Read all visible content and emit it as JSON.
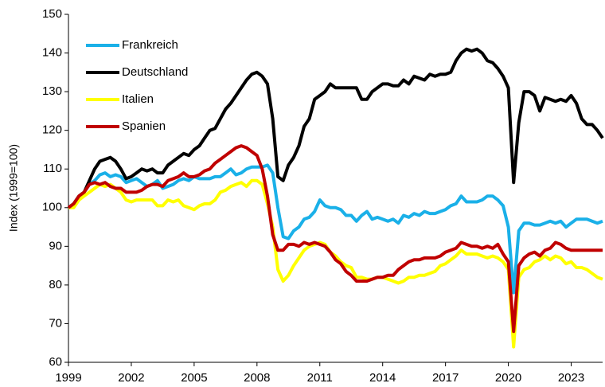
{
  "chart_data": {
    "type": "line",
    "y_label": "Index (1999=100)",
    "x": [
      1999,
      1999.25,
      1999.5,
      1999.75,
      2000,
      2000.25,
      2000.5,
      2000.75,
      2001,
      2001.25,
      2001.5,
      2001.75,
      2002,
      2002.25,
      2002.5,
      2002.75,
      2003,
      2003.25,
      2003.5,
      2003.75,
      2004,
      2004.25,
      2004.5,
      2004.75,
      2005,
      2005.25,
      2005.5,
      2005.75,
      2006,
      2006.25,
      2006.5,
      2006.75,
      2007,
      2007.25,
      2007.5,
      2007.75,
      2008,
      2008.25,
      2008.5,
      2008.75,
      2009,
      2009.25,
      2009.5,
      2009.75,
      2010,
      2010.25,
      2010.5,
      2010.75,
      2011,
      2011.25,
      2011.5,
      2011.75,
      2012,
      2012.25,
      2012.5,
      2012.75,
      2013,
      2013.25,
      2013.5,
      2013.75,
      2014,
      2014.25,
      2014.5,
      2014.75,
      2015,
      2015.25,
      2015.5,
      2015.75,
      2016,
      2016.25,
      2016.5,
      2016.75,
      2017,
      2017.25,
      2017.5,
      2017.75,
      2018,
      2018.25,
      2018.5,
      2018.75,
      2019,
      2019.25,
      2019.5,
      2019.75,
      2020,
      2020.25,
      2020.5,
      2020.75,
      2021,
      2021.25,
      2021.5,
      2021.75,
      2022,
      2022.25,
      2022.5,
      2022.75,
      2023,
      2023.25,
      2023.5,
      2023.75,
      2024,
      2024.25,
      2024.5
    ],
    "series": [
      {
        "name": "Frankreich",
        "color": "#1ab0e8",
        "values": [
          100,
          101,
          103,
          104,
          106,
          107,
          108.5,
          109,
          108,
          108.5,
          108,
          106.5,
          107,
          107.5,
          106.5,
          105.5,
          106,
          107,
          105,
          105.5,
          106,
          107,
          107.5,
          107,
          108,
          107.5,
          107.5,
          107.5,
          108,
          108,
          109,
          110,
          108.5,
          109,
          110,
          110.5,
          110.5,
          110.5,
          111,
          109,
          100,
          92.5,
          92,
          94,
          95,
          97,
          97.5,
          99,
          102,
          100.5,
          100,
          100,
          99.5,
          98,
          98,
          96.5,
          98,
          99,
          97,
          97.5,
          97,
          96.5,
          97,
          96,
          98,
          97.5,
          98.5,
          98,
          99,
          98.5,
          98.5,
          99,
          99.5,
          100.5,
          101,
          103,
          101.5,
          101.5,
          101.5,
          102,
          103,
          103,
          102,
          100.5,
          95,
          78,
          94,
          96,
          96,
          95.5,
          95.5,
          96,
          96.5,
          96,
          96.5,
          95,
          96,
          97,
          97,
          97,
          96.5,
          96,
          96.5
        ]
      },
      {
        "name": "Deutschland",
        "color": "#000000",
        "values": [
          100,
          101,
          103,
          104,
          107,
          110,
          112,
          112.5,
          113,
          112,
          110,
          107.5,
          108,
          109,
          110,
          109.5,
          110,
          109,
          109,
          111,
          112,
          113,
          114,
          113.5,
          115,
          116,
          118,
          120,
          120.5,
          123,
          125.5,
          127,
          129,
          131,
          133,
          134.5,
          135,
          134,
          132,
          123,
          108,
          107,
          111,
          113,
          116,
          121,
          123,
          128,
          129,
          130,
          132,
          131,
          131,
          131,
          131,
          131,
          128,
          128,
          130,
          131,
          132,
          132,
          131.5,
          131.5,
          133,
          132,
          134,
          133.5,
          133,
          134.5,
          134,
          134.5,
          134.5,
          135,
          138,
          140,
          141,
          140.5,
          141,
          140,
          138,
          137.5,
          136,
          134,
          131,
          106.5,
          122,
          130,
          130,
          129,
          125,
          128.5,
          128,
          127.5,
          128,
          127.5,
          129,
          127,
          123,
          121.5,
          121.5,
          120,
          118
        ]
      },
      {
        "name": "Italien",
        "color": "#ffff00",
        "values": [
          100,
          100,
          102,
          103,
          104,
          105,
          106,
          105.5,
          106,
          105,
          104,
          102,
          101.5,
          102,
          102,
          102,
          102,
          100.5,
          100.5,
          102,
          101.5,
          102,
          100.5,
          100,
          99.5,
          100.5,
          101,
          101,
          102,
          104,
          104.5,
          105.5,
          106,
          106.5,
          105.5,
          107,
          107,
          106,
          101,
          95,
          84,
          81,
          82.5,
          85,
          87,
          89,
          90,
          90.5,
          91,
          90.5,
          88.5,
          87.5,
          86,
          85,
          84.5,
          82,
          82,
          81.5,
          81.5,
          82,
          82,
          81.5,
          81,
          80.5,
          81,
          82,
          82,
          82.5,
          82.5,
          83,
          83.5,
          85,
          85.5,
          86.5,
          87.5,
          89,
          88,
          88,
          88,
          87.5,
          87,
          87.5,
          87,
          86,
          84,
          64,
          82,
          84,
          84.5,
          86,
          86.5,
          87.5,
          86.5,
          87.5,
          87,
          85.5,
          86,
          84.5,
          84.5,
          84,
          83,
          82,
          81.5
        ]
      },
      {
        "name": "Spanien",
        "color": "#c00000",
        "values": [
          100,
          101,
          103,
          104,
          106,
          106.5,
          106,
          106.5,
          105.5,
          105,
          105,
          104,
          104,
          104,
          104.5,
          105.5,
          106,
          106,
          105.5,
          107,
          107.5,
          108,
          109,
          108,
          108,
          108.5,
          109.5,
          110,
          111.5,
          112.5,
          113.5,
          114.5,
          115.5,
          116,
          115.5,
          114.5,
          113.5,
          110,
          103,
          93,
          89,
          89,
          90.5,
          90.5,
          90,
          91,
          90.5,
          91,
          90.5,
          90,
          88.5,
          86.5,
          85.5,
          83.5,
          82.5,
          81,
          81,
          81,
          81.5,
          82,
          82,
          82.5,
          82.5,
          84,
          85,
          86,
          86.5,
          86.5,
          87,
          87,
          87,
          87.5,
          88.5,
          89,
          89.5,
          91,
          90.5,
          90,
          90,
          89.5,
          90,
          89.5,
          90.5,
          88,
          86,
          68,
          85,
          87,
          88,
          88.5,
          87.5,
          89,
          89.5,
          91,
          90.5,
          89.5,
          89,
          89,
          89,
          89,
          89,
          89,
          89
        ]
      }
    ],
    "xlim": [
      1999,
      2024.5
    ],
    "xticks": [
      1999,
      2002,
      2005,
      2008,
      2011,
      2014,
      2017,
      2020,
      2023
    ],
    "ylim": [
      60,
      150
    ],
    "yticks": [
      60,
      70,
      80,
      90,
      100,
      110,
      120,
      130,
      140,
      150
    ],
    "grid": false,
    "legend": "top-left"
  }
}
